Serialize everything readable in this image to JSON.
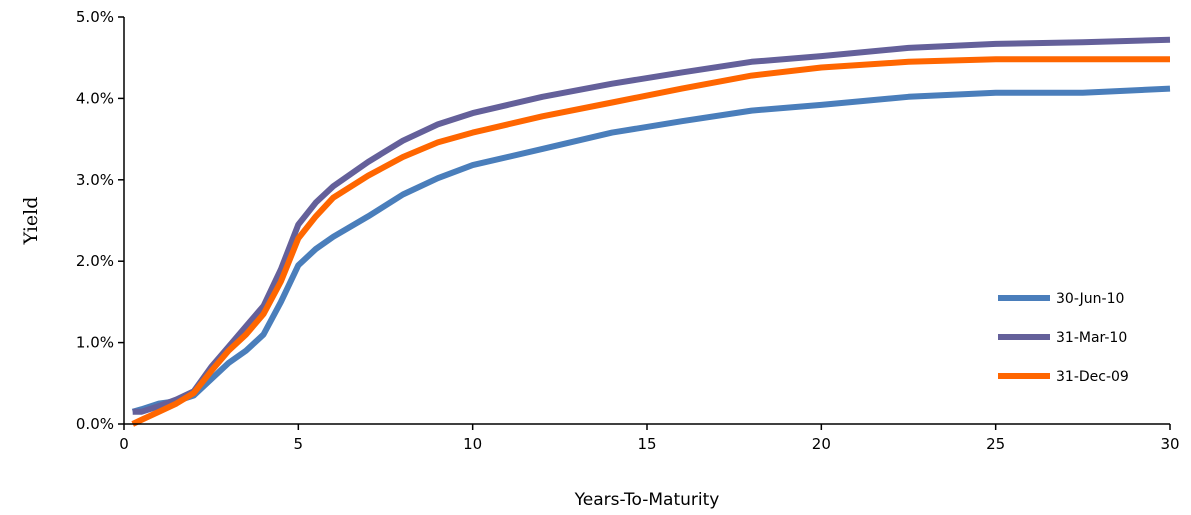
{
  "chart_data": {
    "type": "line",
    "xlabel": "Years-To-Maturity",
    "ylabel": "Yield",
    "xlim": [
      0,
      30
    ],
    "ylim": [
      0,
      0.05
    ],
    "x_ticks": [
      0,
      5,
      10,
      15,
      20,
      25,
      30
    ],
    "x_tick_labels": [
      "0",
      "5",
      "10",
      "15",
      "20",
      "25",
      "30"
    ],
    "y_ticks": [
      0,
      0.01,
      0.02,
      0.03,
      0.04,
      0.05
    ],
    "y_tick_labels": [
      "0.0%",
      "1.0%",
      "2.0%",
      "3.0%",
      "4.0%",
      "5.0%"
    ],
    "grid": false,
    "legend_position": "bottom-right",
    "series": [
      {
        "name": "30-Jun-10",
        "color": "#4a7ebb",
        "points": [
          [
            0.25,
            0.0015
          ],
          [
            0.5,
            0.0018
          ],
          [
            1,
            0.0025
          ],
          [
            1.5,
            0.0028
          ],
          [
            2,
            0.0035
          ],
          [
            2.5,
            0.0055
          ],
          [
            3,
            0.0075
          ],
          [
            3.5,
            0.009
          ],
          [
            4,
            0.011
          ],
          [
            4.5,
            0.015
          ],
          [
            5,
            0.0195
          ],
          [
            5.5,
            0.0215
          ],
          [
            6,
            0.023
          ],
          [
            7,
            0.0255
          ],
          [
            8,
            0.0282
          ],
          [
            9,
            0.0302
          ],
          [
            10,
            0.0318
          ],
          [
            12,
            0.0338
          ],
          [
            14,
            0.0358
          ],
          [
            16,
            0.0372
          ],
          [
            18,
            0.0385
          ],
          [
            20,
            0.0392
          ],
          [
            22.5,
            0.0402
          ],
          [
            25,
            0.0407
          ],
          [
            27.5,
            0.0407
          ],
          [
            30,
            0.0412
          ]
        ]
      },
      {
        "name": "31-Mar-10",
        "color": "#64609a",
        "points": [
          [
            0.25,
            0.0015
          ],
          [
            0.5,
            0.0015
          ],
          [
            1,
            0.0022
          ],
          [
            1.5,
            0.003
          ],
          [
            2,
            0.004
          ],
          [
            2.5,
            0.007
          ],
          [
            3,
            0.0095
          ],
          [
            3.5,
            0.012
          ],
          [
            4,
            0.0145
          ],
          [
            4.5,
            0.019
          ],
          [
            5,
            0.0245
          ],
          [
            5.5,
            0.0272
          ],
          [
            6,
            0.0292
          ],
          [
            7,
            0.0322
          ],
          [
            8,
            0.0348
          ],
          [
            9,
            0.0368
          ],
          [
            10,
            0.0382
          ],
          [
            12,
            0.0402
          ],
          [
            14,
            0.0418
          ],
          [
            16,
            0.0432
          ],
          [
            18,
            0.0445
          ],
          [
            20,
            0.0452
          ],
          [
            22.5,
            0.0462
          ],
          [
            25,
            0.0467
          ],
          [
            27.5,
            0.0469
          ],
          [
            30,
            0.0472
          ]
        ]
      },
      {
        "name": "31-Dec-09",
        "color": "#ff6600",
        "points": [
          [
            0.25,
            0.0
          ],
          [
            0.5,
            0.0005
          ],
          [
            1,
            0.0015
          ],
          [
            1.5,
            0.0025
          ],
          [
            2,
            0.0038
          ],
          [
            2.5,
            0.0065
          ],
          [
            3,
            0.009
          ],
          [
            3.5,
            0.011
          ],
          [
            4,
            0.0135
          ],
          [
            4.5,
            0.0175
          ],
          [
            5,
            0.0228
          ],
          [
            5.5,
            0.0255
          ],
          [
            6,
            0.0278
          ],
          [
            7,
            0.0305
          ],
          [
            8,
            0.0328
          ],
          [
            9,
            0.0346
          ],
          [
            10,
            0.0358
          ],
          [
            12,
            0.0378
          ],
          [
            14,
            0.0395
          ],
          [
            16,
            0.0412
          ],
          [
            18,
            0.0428
          ],
          [
            20,
            0.0438
          ],
          [
            22.5,
            0.0445
          ],
          [
            25,
            0.0448
          ],
          [
            27.5,
            0.0448
          ],
          [
            30,
            0.0448
          ]
        ]
      }
    ]
  }
}
